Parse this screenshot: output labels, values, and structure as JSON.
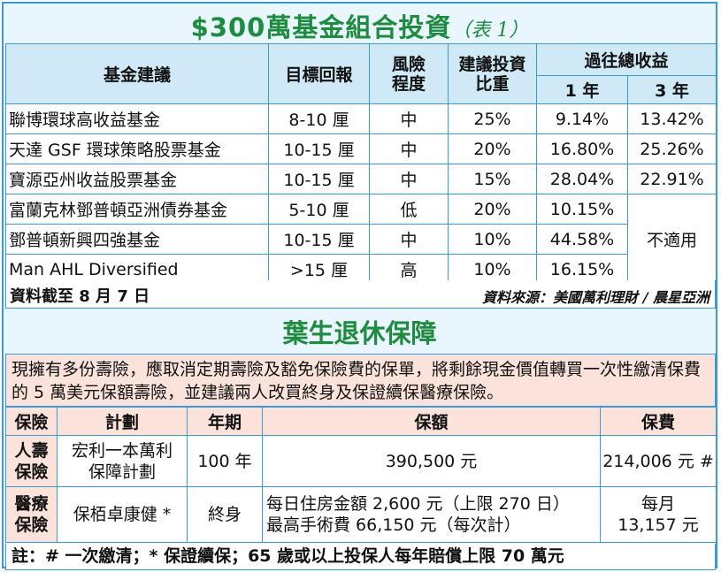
{
  "title1": {
    "main": "$300萬基金組合投資",
    "sub": "（表 1）"
  },
  "table1": {
    "headers": {
      "fund": "基金建議",
      "target": "目標回報",
      "risk": "風險程度",
      "weight": "建議投資比重",
      "past": "過往總收益",
      "y1": "1 年",
      "y3": "3 年"
    },
    "rows": [
      {
        "fund": "聯博環球高收益基金",
        "target": "8-10 厘",
        "risk": "中",
        "weight": "25%",
        "y1": "9.14%",
        "y3": "13.42%"
      },
      {
        "fund": "天達 GSF 環球策略股票基金",
        "target": "10-15 厘",
        "risk": "中",
        "weight": "20%",
        "y1": "16.80%",
        "y3": "25.26%"
      },
      {
        "fund": "寶源亞州收益股票基金",
        "target": "10-15 厘",
        "risk": "中",
        "weight": "15%",
        "y1": "28.04%",
        "y3": "22.91%"
      },
      {
        "fund": "富蘭克林鄧普頓亞洲債券基金",
        "target": "5-10 厘",
        "risk": "低",
        "weight": "20%",
        "y1": "10.15%"
      },
      {
        "fund": "鄧普頓新興四強基金",
        "target": "10-15 厘",
        "risk": "中",
        "weight": "10%",
        "y1": "44.58%"
      },
      {
        "fund": "Man AHL Diversified",
        "target": ">15 厘",
        "risk": "高",
        "weight": "10%",
        "y1": "16.15%"
      }
    ],
    "not_applicable": "不適用",
    "data_date": "資料截至 8 月 7 日",
    "source": "資料來源：美國萬利理財 / 晨星亞洲"
  },
  "title2": "葉生退休保障",
  "description": "現擁有多份壽險，應取消定期壽險及豁免保險費的保單，將剩餘現金價值轉買一次性繳清保費的 5 萬美元保額壽險，並建議兩人改買終身及保證續保醫療保險。",
  "table2": {
    "headers": {
      "type": "保險",
      "plan": "計劃",
      "term": "年期",
      "coverage": "保額",
      "premium": "保費"
    },
    "rows": [
      {
        "type": "人壽保險",
        "plan": "宏利一本萬利保障計劃",
        "term": "100 年",
        "coverage": "390,500 元",
        "premium": "214,006 元 #"
      },
      {
        "type": "醫療保險",
        "plan": "保栢卓康健 *",
        "term": "終身",
        "coverage_line1": "每日住房金額 2,600 元（上限 270 日）",
        "coverage_line2": "最高手術費 66,150 元（每次計）",
        "premium_line1": "每月",
        "premium_line2": "13,157 元"
      }
    ]
  },
  "note": "註：# 一次繳清；* 保證續保；65 歲或以上投保人每年賠償上限 70 萬元",
  "colors": {
    "border": "#3a9ad9",
    "title": "#1e8c3f",
    "header_blue": "#cfe9f7",
    "pink": "#fbe3dc"
  }
}
